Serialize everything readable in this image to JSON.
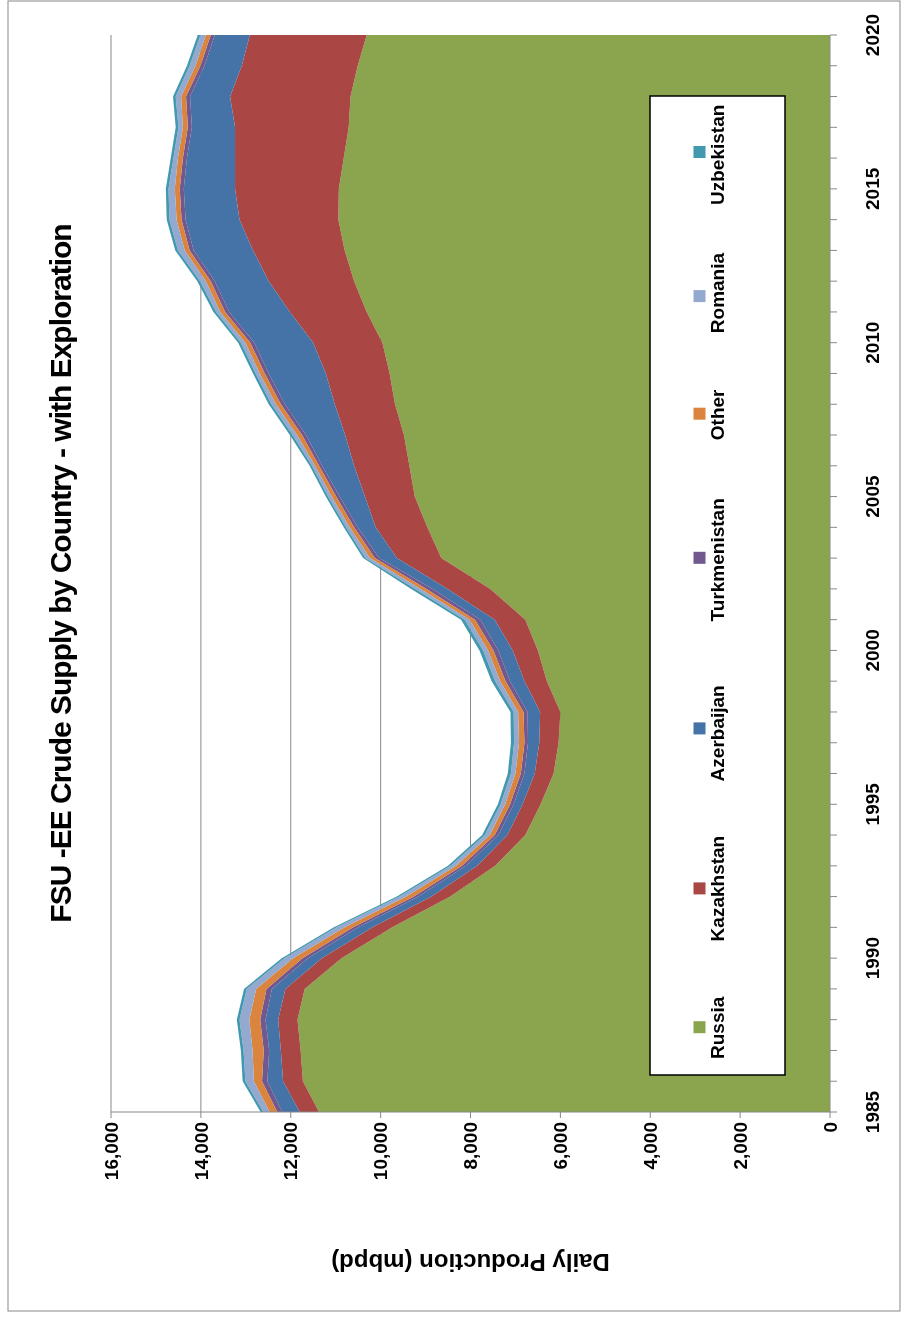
{
  "chart_data": {
    "type": "area",
    "stacked": true,
    "orientation": "horizontal",
    "title": "FSU -EE Crude Supply by Country - with Exploration",
    "xlabel": "Daily Production (mbpd)",
    "x": [
      1985,
      1986,
      1987,
      1988,
      1989,
      1990,
      1991,
      1992,
      1993,
      1994,
      1995,
      1996,
      1997,
      1998,
      1999,
      2000,
      2001,
      2002,
      2003,
      2004,
      2005,
      2006,
      2007,
      2008,
      2009,
      2010,
      2011,
      2012,
      2013,
      2014,
      2015,
      2016,
      2017,
      2018,
      2019,
      2020
    ],
    "ylim": [
      1985,
      2020
    ],
    "yticks": [
      1985,
      {
        "value": 1986,
        "label": null
      },
      {
        "value": 1987,
        "label": null
      },
      {
        "value": 1988,
        "label": null
      },
      {
        "value": 1989,
        "label": null
      },
      1990,
      {
        "value": 1991,
        "label": null
      },
      {
        "value": 1992,
        "label": null
      },
      {
        "value": 1993,
        "label": null
      },
      {
        "value": 1994,
        "label": null
      },
      1995,
      {
        "value": 1996,
        "label": null
      },
      {
        "value": 1997,
        "label": null
      },
      {
        "value": 1998,
        "label": null
      },
      {
        "value": 1999,
        "label": null
      },
      2000,
      {
        "value": 2001,
        "label": null
      },
      {
        "value": 2002,
        "label": null
      },
      {
        "value": 2003,
        "label": null
      },
      {
        "value": 2004,
        "label": null
      },
      2005,
      {
        "value": 2006,
        "label": null
      },
      {
        "value": 2007,
        "label": null
      },
      {
        "value": 2008,
        "label": null
      },
      {
        "value": 2009,
        "label": null
      },
      2010,
      {
        "value": 2011,
        "label": null
      },
      {
        "value": 2012,
        "label": null
      },
      {
        "value": 2013,
        "label": null
      },
      {
        "value": 2014,
        "label": null
      },
      2015,
      {
        "value": 2016,
        "label": null
      },
      {
        "value": 2017,
        "label": null
      },
      {
        "value": 2018,
        "label": null
      },
      {
        "value": 2019,
        "label": null
      },
      2020
    ],
    "xlim": [
      16000,
      0
    ],
    "xticks": [
      {
        "value": 0,
        "label": "0"
      },
      {
        "value": 2000,
        "label": "2,000"
      },
      {
        "value": 4000,
        "label": "4,000"
      },
      {
        "value": 6000,
        "label": "6,000"
      },
      {
        "value": 8000,
        "label": "8,000"
      },
      {
        "value": 10000,
        "label": "10,000"
      },
      {
        "value": 12000,
        "label": "12,000"
      },
      {
        "value": 14000,
        "label": "14,000"
      },
      {
        "value": 16000,
        "label": "16,000"
      }
    ],
    "grid": "x",
    "legend": "right",
    "series": [
      {
        "name": "Russia",
        "color": "#8aa54e",
        "values": [
          11370,
          11730,
          11780,
          11850,
          11690,
          10870,
          9740,
          8450,
          7450,
          6780,
          6440,
          6150,
          6040,
          6000,
          6300,
          6500,
          6780,
          7560,
          8650,
          8960,
          9240,
          9360,
          9480,
          9680,
          9800,
          9960,
          10310,
          10590,
          10800,
          10940,
          10930,
          10820,
          10710,
          10670,
          10510,
          10310
        ]
      },
      {
        "name": "Kazakhstan",
        "color": "#aa4644",
        "values": [
          430,
          440,
          440,
          430,
          430,
          440,
          440,
          420,
          400,
          400,
          400,
          420,
          430,
          450,
          500,
          560,
          680,
          950,
          990,
          1150,
          1110,
          1230,
          1310,
          1340,
          1420,
          1540,
          1710,
          1900,
          2040,
          2200,
          2310,
          2420,
          2530,
          2680,
          2580,
          2600
        ]
      },
      {
        "name": "Azerbaijan",
        "color": "#4572a7",
        "values": [
          390,
          350,
          260,
          280,
          300,
          310,
          320,
          290,
          250,
          200,
          200,
          230,
          250,
          280,
          320,
          320,
          320,
          330,
          390,
          400,
          560,
          710,
          870,
          1110,
          1270,
          1310,
          1350,
          1200,
          1320,
          1200,
          1140,
          1070,
          960,
          890,
          830,
          780
        ]
      },
      {
        "name": "Turkmenistan",
        "color": "#71588f",
        "values": [
          110,
          120,
          120,
          120,
          120,
          120,
          110,
          100,
          90,
          80,
          80,
          80,
          80,
          90,
          100,
          110,
          120,
          140,
          100,
          80,
          80,
          70,
          90,
          90,
          90,
          90,
          90,
          90,
          90,
          90,
          90,
          90,
          90,
          90,
          90,
          90
        ]
      },
      {
        "name": "Other",
        "color": "#db843d",
        "values": [
          170,
          180,
          250,
          240,
          230,
          210,
          190,
          170,
          130,
          110,
          110,
          120,
          120,
          120,
          120,
          120,
          120,
          130,
          110,
          100,
          100,
          90,
          110,
          110,
          110,
          110,
          110,
          110,
          110,
          110,
          110,
          110,
          110,
          110,
          110,
          110
        ]
      },
      {
        "name": "Romania",
        "color": "#93a9cf",
        "values": [
          140,
          190,
          200,
          220,
          210,
          190,
          180,
          150,
          120,
          110,
          100,
          100,
          110,
          100,
          110,
          110,
          110,
          120,
          100,
          80,
          80,
          70,
          100,
          100,
          90,
          100,
          90,
          130,
          150,
          160,
          140,
          100,
          100,
          120,
          130,
          120
        ]
      },
      {
        "name": "Uzbekistan",
        "color": "#4198af",
        "values": [
          60,
          60,
          60,
          60,
          60,
          60,
          60,
          60,
          60,
          60,
          60,
          70,
          70,
          70,
          80,
          80,
          80,
          90,
          50,
          50,
          50,
          50,
          60,
          60,
          60,
          60,
          60,
          60,
          60,
          60,
          60,
          60,
          60,
          60,
          60,
          60
        ]
      }
    ]
  }
}
